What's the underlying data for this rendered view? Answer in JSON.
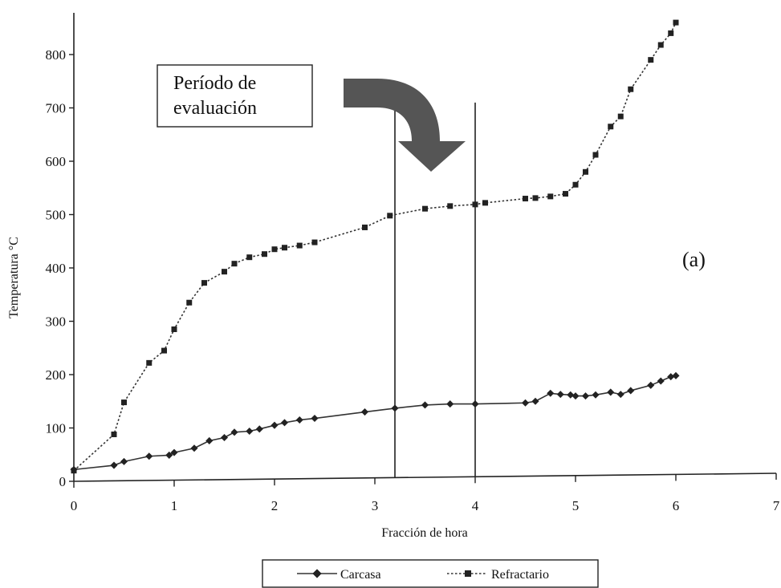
{
  "chart_data": {
    "type": "line",
    "title": "",
    "xlabel": "Fracción de hora",
    "ylabel": "Temperatura °C",
    "xlim": [
      0,
      7
    ],
    "ylim": [
      0,
      800
    ],
    "xticks": [
      0,
      1,
      2,
      3,
      4,
      5,
      6,
      7
    ],
    "yticks": [
      0,
      100,
      200,
      300,
      400,
      500,
      600,
      700,
      800
    ],
    "grid": false,
    "legend_position": "bottom",
    "series": [
      {
        "name": "Carcasa",
        "marker": "diamond",
        "line_style": "solid",
        "color": "#222222",
        "x": [
          0,
          0.4,
          0.5,
          0.75,
          0.95,
          1.0,
          1.2,
          1.35,
          1.5,
          1.6,
          1.75,
          1.85,
          2.0,
          2.1,
          2.25,
          2.4,
          2.9,
          3.2,
          3.5,
          3.75,
          4.0,
          4.5,
          4.6,
          4.75,
          4.85,
          4.95,
          5.0,
          5.1,
          5.2,
          5.35,
          5.45,
          5.55,
          5.75,
          5.85,
          5.95,
          6.0
        ],
        "y": [
          22,
          30,
          37,
          47,
          49,
          54,
          62,
          76,
          82,
          92,
          94,
          98,
          105,
          110,
          115,
          118,
          130,
          137,
          143,
          145,
          145,
          147,
          150,
          165,
          163,
          162,
          160,
          160,
          162,
          167,
          163,
          170,
          180,
          188,
          196,
          198
        ]
      },
      {
        "name": "Refractario",
        "marker": "square",
        "line_style": "dotted",
        "color": "#222222",
        "x": [
          0,
          0.4,
          0.5,
          0.75,
          0.9,
          1.0,
          1.15,
          1.3,
          1.5,
          1.6,
          1.75,
          1.9,
          2.0,
          2.1,
          2.25,
          2.4,
          2.9,
          3.15,
          3.5,
          3.75,
          4.0,
          4.1,
          4.5,
          4.6,
          4.75,
          4.9,
          5.0,
          5.1,
          5.2,
          5.35,
          5.45,
          5.55,
          5.75,
          5.85,
          5.95,
          6.0
        ],
        "y": [
          20,
          88,
          148,
          222,
          245,
          285,
          335,
          372,
          393,
          408,
          420,
          426,
          435,
          438,
          442,
          448,
          476,
          498,
          511,
          516,
          519,
          522,
          530,
          531,
          534,
          539,
          556,
          580,
          612,
          665,
          684,
          735,
          790,
          818,
          840,
          860
        ]
      }
    ],
    "vertical_lines_x": [
      3.2,
      4.0
    ],
    "annotations": {
      "period_box": "Período de evaluación",
      "period_box_line1": "Período de",
      "period_box_line2": "evaluación",
      "panel_label": "(a)"
    },
    "legend": {
      "carcasa": "Carcasa",
      "refractario": "Refractario"
    }
  }
}
